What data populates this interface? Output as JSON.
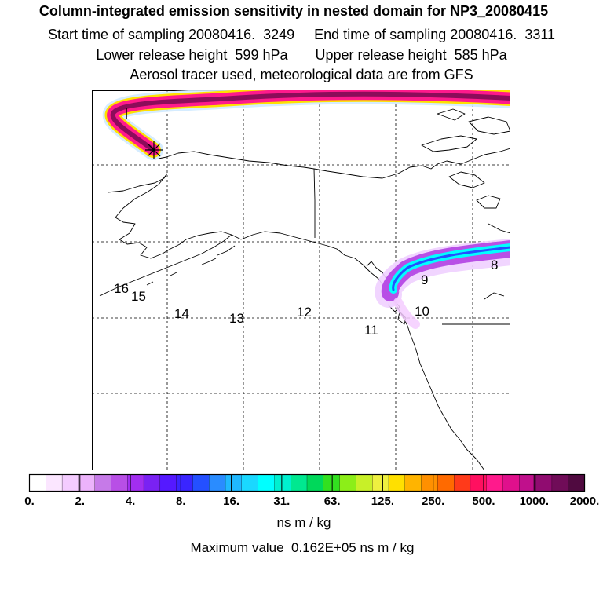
{
  "header": {
    "title": "Column-integrated emission sensitivity in nested domain for NP3_20080415",
    "sampling_line": "Start time of sampling 20080416.  3249     End time of sampling 20080416.  3311",
    "release_line": "Lower release height  599 hPa       Upper release height  585 hPa",
    "tracer_line": "Aerosol tracer used, meteorological data are from GFS"
  },
  "map": {
    "trajectory_labels": [
      {
        "text": "16",
        "id": "16"
      },
      {
        "text": "15",
        "id": "15"
      },
      {
        "text": "14",
        "id": "14"
      },
      {
        "text": "13",
        "id": "13"
      },
      {
        "text": "12",
        "id": "12"
      },
      {
        "text": "11",
        "id": "11"
      },
      {
        "text": "10",
        "id": "10"
      },
      {
        "text": "9",
        "id": "9"
      },
      {
        "text": "8",
        "id": "8"
      }
    ],
    "release_marker": "release-point"
  },
  "colorbar": {
    "tick_labels": [
      "0.",
      "2.",
      "4.",
      "8.",
      "16.",
      "31.",
      "63.",
      "125.",
      "250.",
      "500.",
      "1000.",
      "2000."
    ],
    "colors": [
      "#ffffff",
      "#fbe6ff",
      "#f4ccff",
      "#ecb3fb",
      "#c67ae8",
      "#b84fe6",
      "#a22ef0",
      "#7a22f3",
      "#5519ff",
      "#3a25ff",
      "#2450ff",
      "#2a8cff",
      "#20b8ff",
      "#1ad8ff",
      "#00ffff",
      "#00f0d0",
      "#00e890",
      "#00d85a",
      "#32e020",
      "#8cee18",
      "#c8f028",
      "#eef040",
      "#ffe000",
      "#ffb400",
      "#ff9000",
      "#ff6a00",
      "#ff3a1a",
      "#ff1060",
      "#ff1a8c",
      "#e0108c",
      "#c0108c",
      "#900c70",
      "#700c58",
      "#500a40"
    ],
    "units": "ns m / kg"
  },
  "footer": {
    "max_value": "Maximum value  0.162E+05 ns m / kg"
  }
}
